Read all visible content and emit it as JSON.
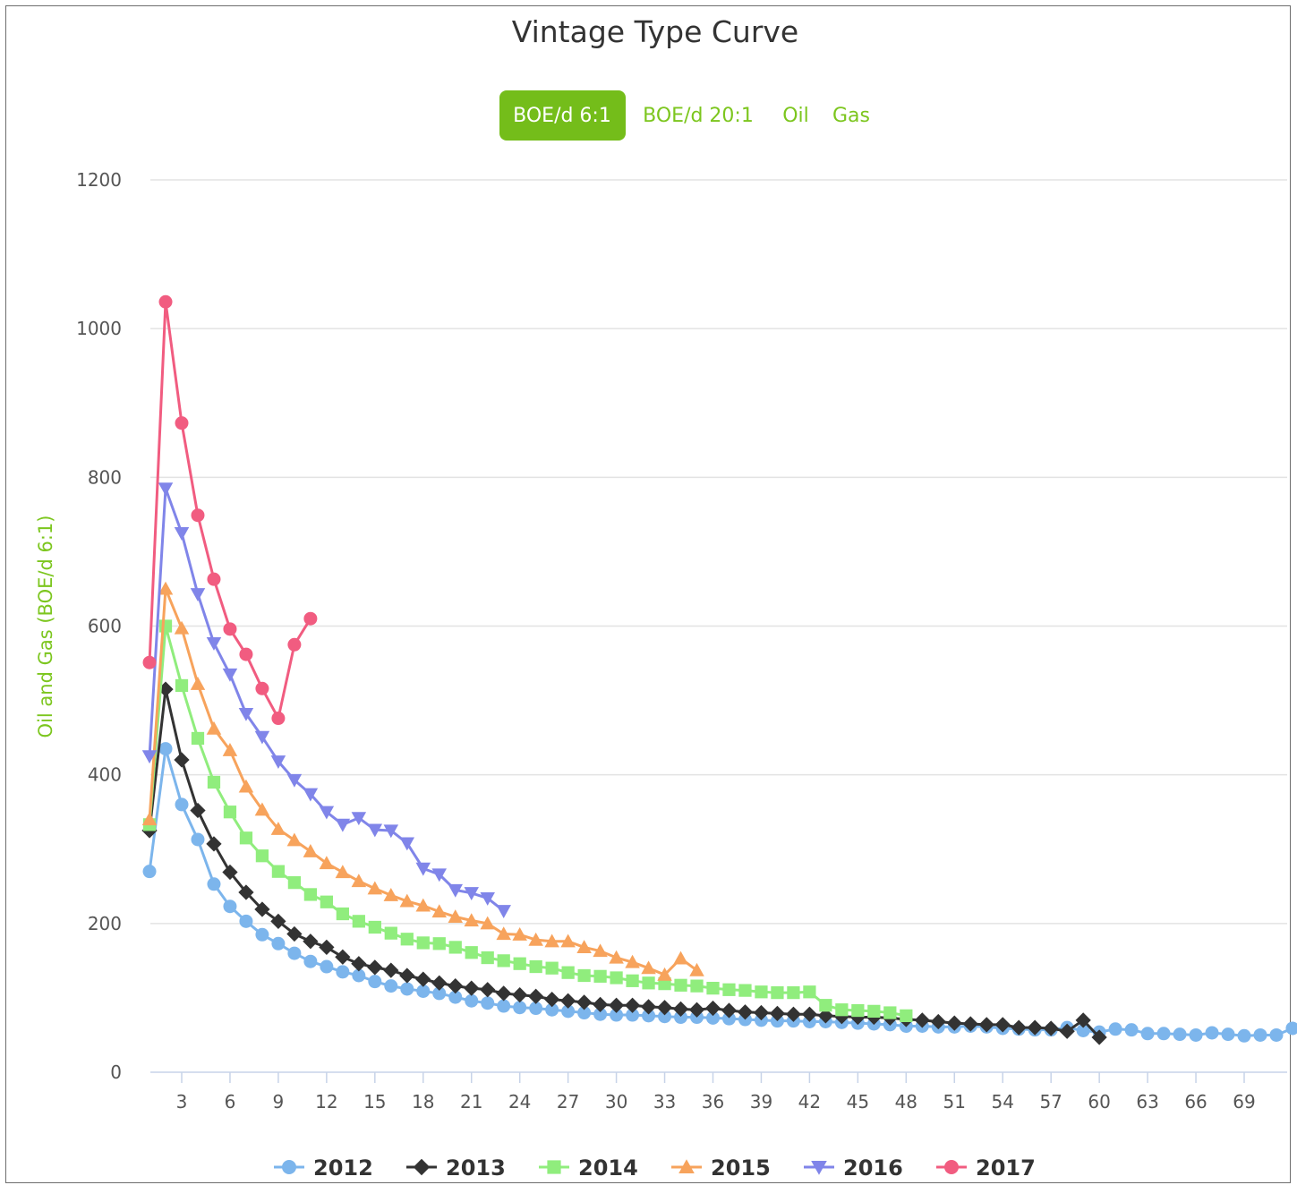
{
  "header": {
    "title": "Vintage Type Curve"
  },
  "tabs": [
    {
      "label": "BOE/d 6:1",
      "active": true
    },
    {
      "label": "BOE/d 20:1",
      "active": false
    },
    {
      "label": "Oil",
      "active": false
    },
    {
      "label": "Gas",
      "active": false
    }
  ],
  "colors": {
    "accent": "#74bd1a",
    "series": [
      "#7cb5ec",
      "#333333",
      "#90ed7d",
      "#f7a35c",
      "#8085e9",
      "#f15c80"
    ]
  },
  "chart_data": {
    "type": "line",
    "title": "Vintage Type Curve",
    "xlabel": "",
    "ylabel": "Oil and Gas (BOE/d 6:1)",
    "xlim": [
      0,
      71
    ],
    "ylim": [
      0,
      1200
    ],
    "x_ticks": [
      3,
      6,
      9,
      12,
      15,
      18,
      21,
      24,
      27,
      30,
      33,
      36,
      39,
      42,
      45,
      48,
      51,
      54,
      57,
      60,
      63,
      66,
      69
    ],
    "y_ticks": [
      0,
      200,
      400,
      600,
      800,
      1000,
      1200
    ],
    "grid": true,
    "legend_position": "bottom-center",
    "series": [
      {
        "name": "2012",
        "marker": "circle",
        "color": "#7cb5ec",
        "values": [
          270,
          435,
          360,
          313,
          253,
          223,
          203,
          185,
          173,
          160,
          149,
          142,
          135,
          130,
          122,
          116,
          112,
          109,
          106,
          101,
          96,
          93,
          89,
          87,
          86,
          84,
          82,
          80,
          78,
          77,
          77,
          76,
          75,
          74,
          74,
          73,
          72,
          71,
          70,
          69,
          69,
          68,
          68,
          67,
          66,
          65,
          64,
          62,
          62,
          61,
          61,
          62,
          61,
          59,
          58,
          57,
          57,
          60,
          56,
          54,
          58,
          57,
          52,
          52,
          51,
          50,
          53,
          51,
          49,
          50,
          50,
          59
        ]
      },
      {
        "name": "2013",
        "marker": "diamond",
        "color": "#333333",
        "values": [
          325,
          515,
          420,
          352,
          307,
          269,
          242,
          219,
          203,
          186,
          176,
          168,
          155,
          146,
          141,
          137,
          130,
          125,
          120,
          116,
          113,
          111,
          106,
          104,
          102,
          98,
          96,
          94,
          91,
          90,
          90,
          88,
          87,
          85,
          84,
          86,
          83,
          81,
          80,
          79,
          78,
          78,
          76,
          75,
          74,
          74,
          73,
          71,
          70,
          68,
          66,
          65,
          64,
          64,
          60,
          60,
          59,
          55,
          70,
          47
        ]
      },
      {
        "name": "2014",
        "marker": "square",
        "color": "#90ed7d",
        "values": [
          333,
          600,
          520,
          449,
          390,
          350,
          315,
          291,
          270,
          255,
          239,
          229,
          213,
          203,
          195,
          187,
          179,
          174,
          173,
          168,
          161,
          154,
          150,
          146,
          142,
          140,
          134,
          130,
          129,
          127,
          123,
          120,
          119,
          117,
          116,
          113,
          111,
          110,
          108,
          107,
          107,
          108,
          90,
          84,
          83,
          82,
          80,
          76
        ]
      },
      {
        "name": "2015",
        "marker": "triangle",
        "color": "#f7a35c",
        "values": [
          340,
          650,
          597,
          522,
          462,
          433,
          384,
          353,
          327,
          312,
          297,
          281,
          269,
          257,
          247,
          238,
          230,
          224,
          216,
          209,
          204,
          200,
          186,
          185,
          178,
          176,
          176,
          168,
          163,
          154,
          148,
          140,
          131,
          153,
          137
        ]
      },
      {
        "name": "2016",
        "marker": "triangle-down",
        "color": "#8085e9",
        "values": [
          425,
          785,
          725,
          643,
          577,
          535,
          482,
          451,
          418,
          393,
          374,
          350,
          333,
          342,
          326,
          325,
          308,
          274,
          266,
          245,
          241,
          234,
          217
        ]
      },
      {
        "name": "2017",
        "marker": "circle",
        "color": "#f15c80",
        "values": [
          551,
          1036,
          873,
          749,
          663,
          596,
          562,
          516,
          476,
          575,
          610
        ]
      }
    ]
  }
}
